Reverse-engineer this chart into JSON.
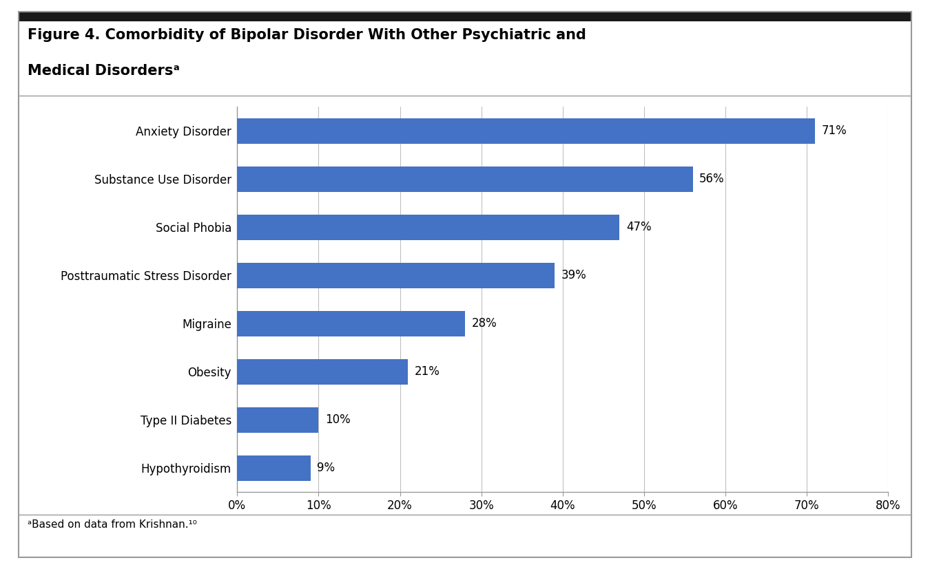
{
  "title_line1": "Figure 4. Comorbidity of Bipolar Disorder With Other Psychiatric and",
  "title_line2": "Medical Disordersᵃ",
  "footnote": "ᵃBased on data from Krishnan.¹⁰",
  "categories": [
    "Anxiety Disorder",
    "Substance Use Disorder",
    "Social Phobia",
    "Posttraumatic Stress Disorder",
    "Migraine",
    "Obesity",
    "Type II Diabetes",
    "Hypothyroidism"
  ],
  "values": [
    71,
    56,
    47,
    39,
    28,
    21,
    10,
    9
  ],
  "bar_color": "#4472C4",
  "xlim": [
    0,
    80
  ],
  "xticks": [
    0,
    10,
    20,
    30,
    40,
    50,
    60,
    70,
    80
  ],
  "bar_label_fontsize": 12,
  "title_fontsize": 15,
  "tick_label_fontsize": 12,
  "background_color": "#ffffff",
  "grid_color": "#c0c0c0",
  "header_color": "#1a1a1a",
  "border_color": "#999999"
}
